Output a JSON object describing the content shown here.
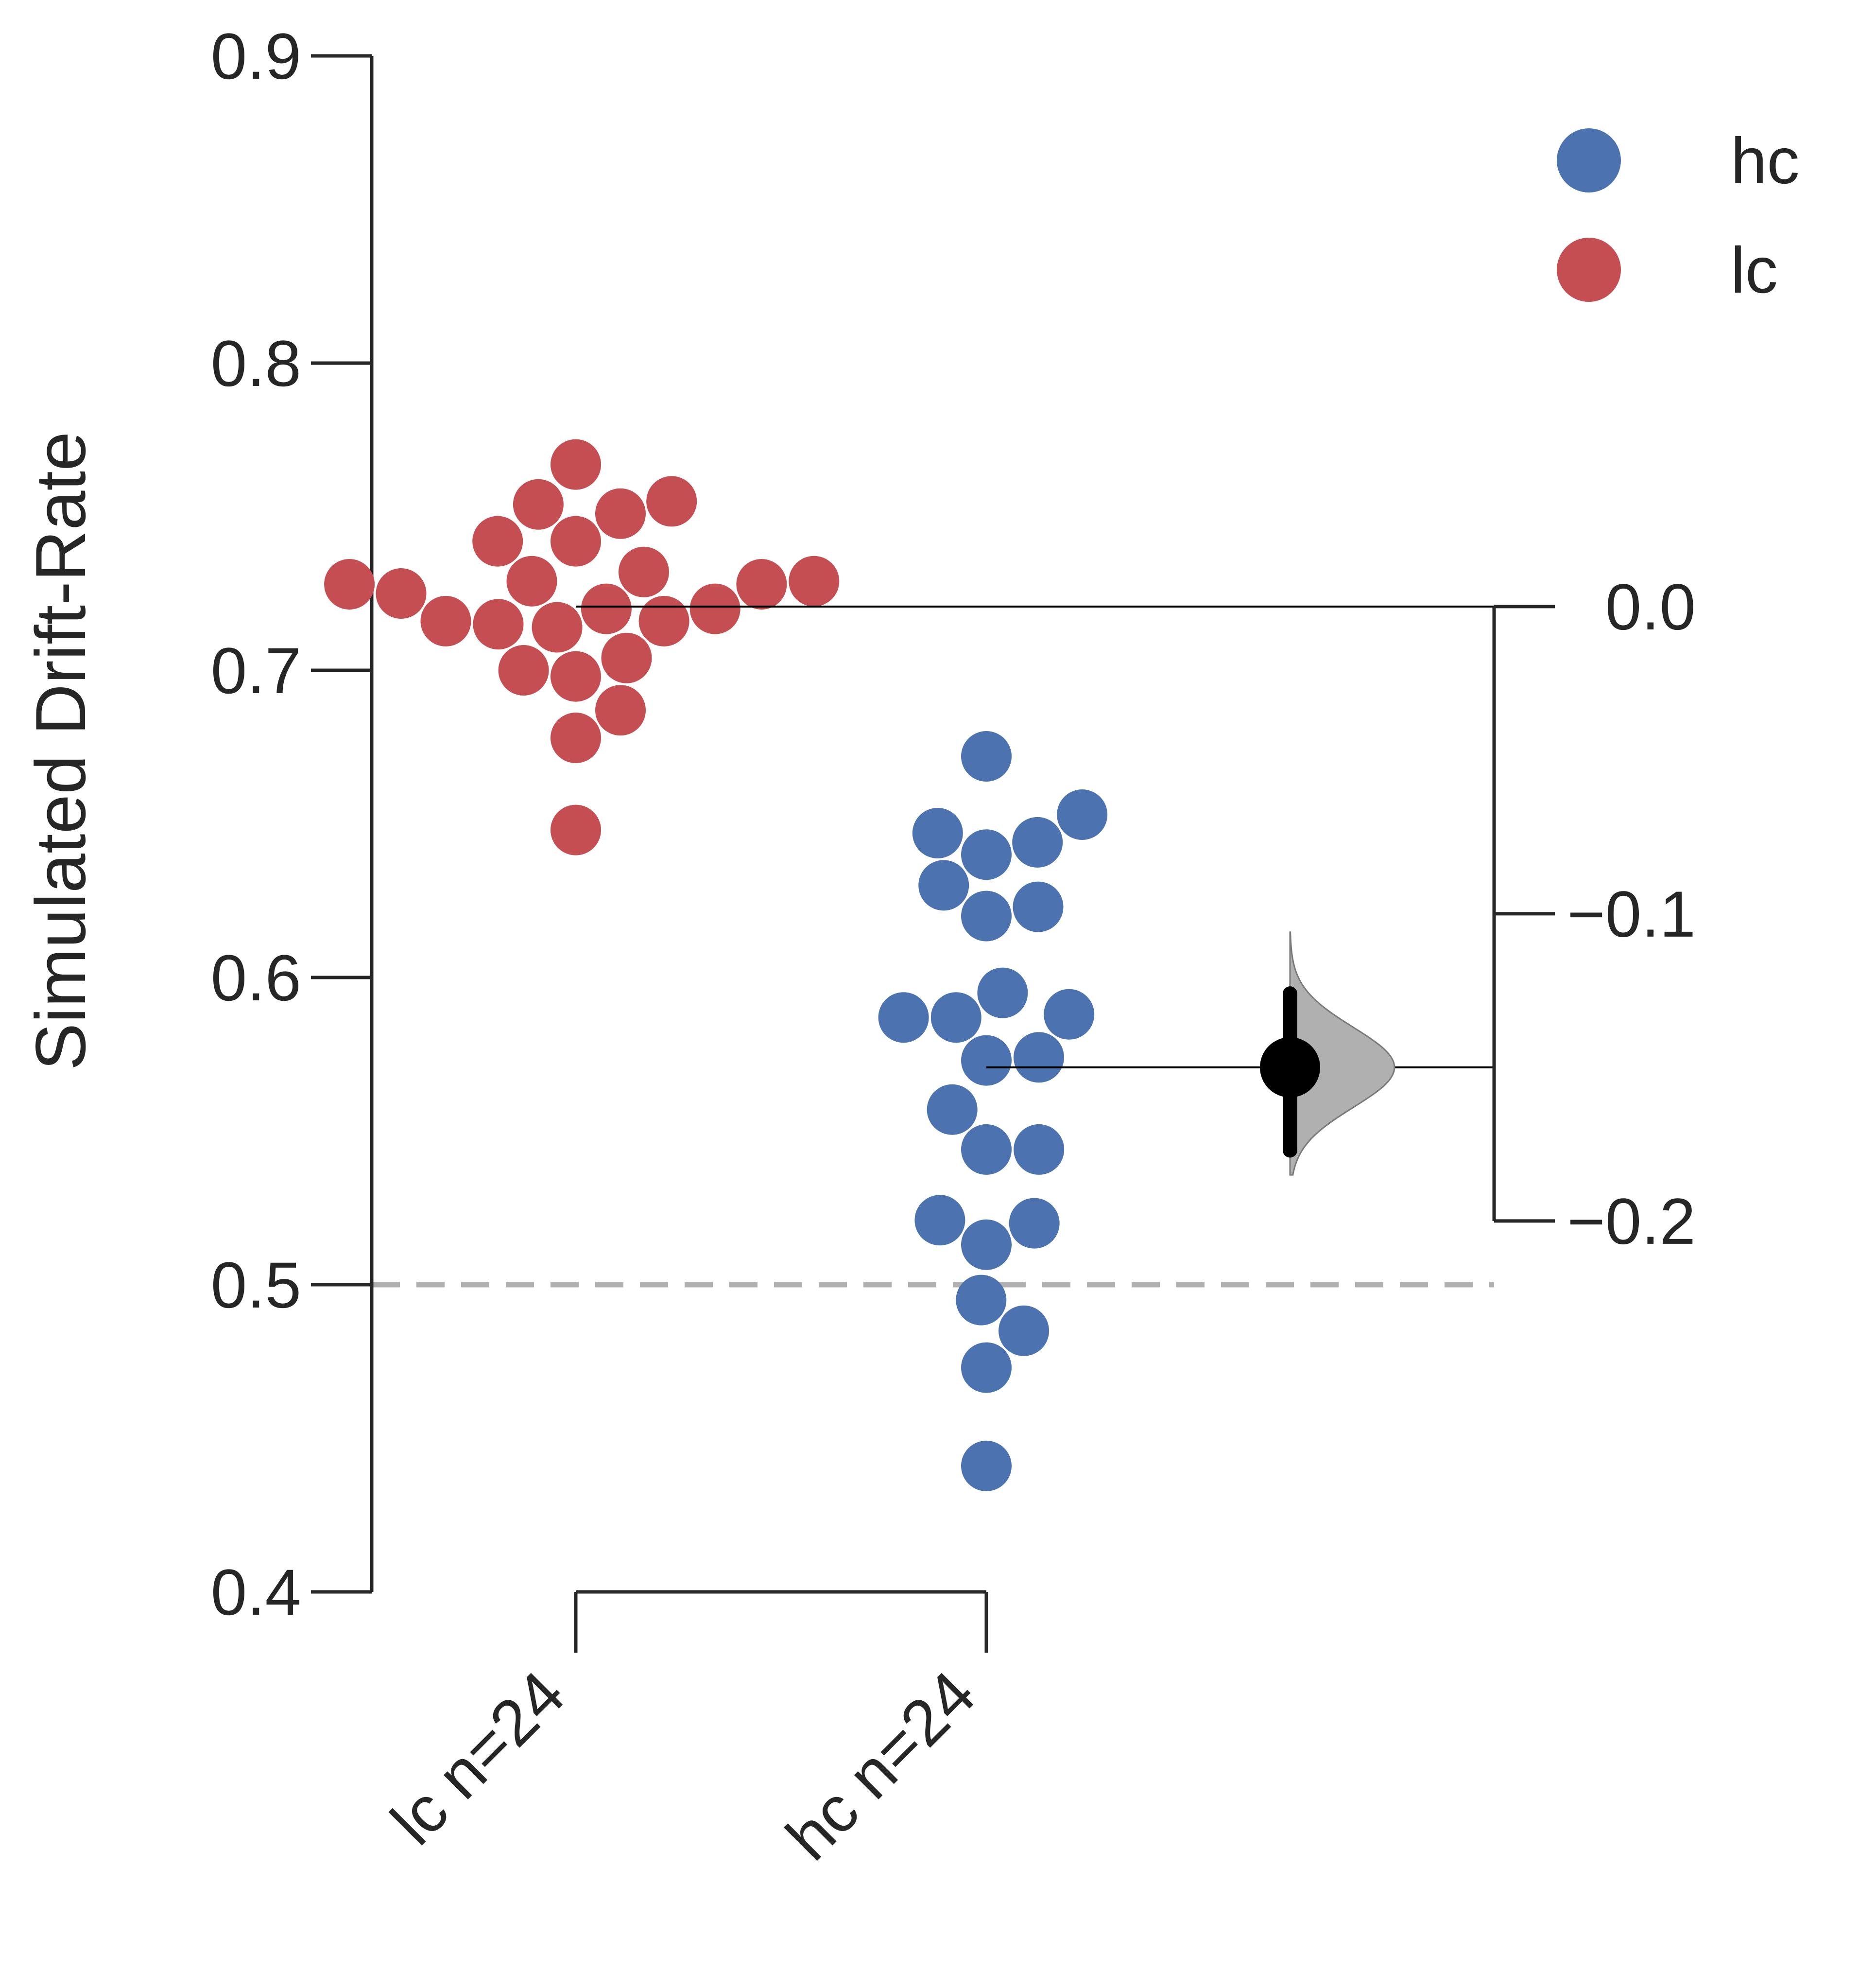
{
  "chart_data": {
    "type": "scatter",
    "subtype": "estimation-plot (swarm + bootstrap mean difference)",
    "ylabel": "Simulated Drift-Rate",
    "ylim": [
      0.4,
      0.9
    ],
    "yticks": [
      "0.4",
      "0.5",
      "0.6",
      "0.7",
      "0.8",
      "0.9"
    ],
    "categories": [
      "lc n=24",
      "hc n=24"
    ],
    "reference_line": {
      "y": 0.5,
      "style": "dashed",
      "color": "#b0b0b0"
    },
    "series": [
      {
        "name": "lc",
        "color": "#c44e52",
        "values": [
          0.767,
          0.755,
          0.754,
          0.751,
          0.742,
          0.742,
          0.732,
          0.729,
          0.729,
          0.728,
          0.728,
          0.725,
          0.72,
          0.72,
          0.716,
          0.716,
          0.715,
          0.714,
          0.704,
          0.7,
          0.698,
          0.687,
          0.678,
          0.648
        ]
      },
      {
        "name": "hc",
        "color": "#4c72b0",
        "values": [
          0.672,
          0.653,
          0.647,
          0.644,
          0.64,
          0.63,
          0.623,
          0.62,
          0.595,
          0.588,
          0.587,
          0.587,
          0.574,
          0.573,
          0.557,
          0.544,
          0.544,
          0.521,
          0.52,
          0.513,
          0.495,
          0.485,
          0.473,
          0.441
        ]
      }
    ],
    "effect_size": {
      "comparison": "hc minus lc",
      "right_axis_ticks": [
        "0.0",
        "−0.1",
        "−0.2"
      ],
      "right_axis_lim": [
        -0.2,
        0.0
      ],
      "mean_difference": -0.15,
      "ci": [
        -0.177,
        -0.126
      ],
      "distribution_range": [
        -0.185,
        -0.106
      ],
      "distribution_color": "#b0b0b0"
    },
    "legend": {
      "placement": "top-right",
      "items": [
        {
          "label": "hc",
          "color": "#4c72b0"
        },
        {
          "label": "lc",
          "color": "#c44e52"
        }
      ]
    }
  }
}
